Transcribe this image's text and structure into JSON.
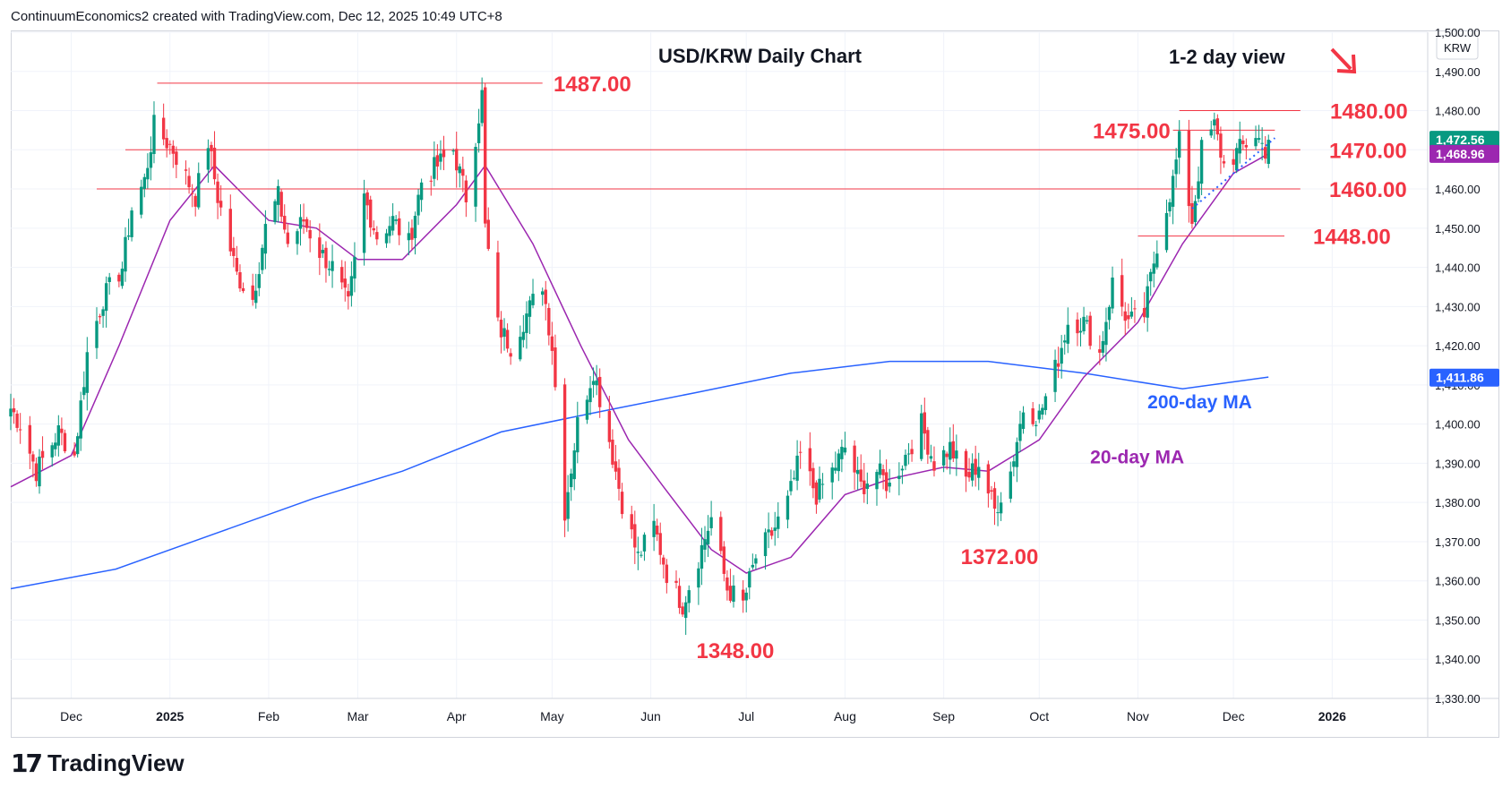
{
  "header": {
    "attribution": "ContinuumEconomics2 created with TradingView.com, Dec 12, 2025 10:49 UTC+8"
  },
  "branding": {
    "logo_text": "TradingView",
    "logo_mark": "17"
  },
  "chart_data": {
    "type": "candlestick",
    "title": "USD/KRW Daily Chart",
    "subtitle": "1-2 day view",
    "view_direction": "down",
    "symbol": "KRW",
    "y_axis": {
      "min": 1330,
      "max": 1500,
      "ticks": [
        1330,
        1340,
        1350,
        1360,
        1370,
        1380,
        1390,
        1400,
        1410,
        1420,
        1430,
        1440,
        1450,
        1460,
        1470,
        1480,
        1490,
        1500
      ],
      "tick_labels": [
        "1,330.00",
        "1,340.00",
        "1,350.00",
        "1,360.00",
        "1,370.00",
        "1,380.00",
        "1,390.00",
        "1,400.00",
        "1,410.00",
        "1,420.00",
        "1,430.00",
        "1,440.00",
        "1,450.00",
        "1,460.00",
        "1,470.00",
        "1,480.00",
        "1,490.00",
        "1,500.00"
      ]
    },
    "x_axis": {
      "labels": [
        "Dec",
        "2025",
        "Feb",
        "Mar",
        "Apr",
        "May",
        "Jun",
        "Jul",
        "Aug",
        "Sep",
        "Oct",
        "Nov",
        "Dec",
        "2026"
      ],
      "label_dates": [
        "2024-12-01",
        "2025-01-01",
        "2025-02-01",
        "2025-03-01",
        "2025-04-01",
        "2025-05-01",
        "2025-06-01",
        "2025-07-01",
        "2025-08-01",
        "2025-09-01",
        "2025-10-01",
        "2025-11-01",
        "2025-12-01",
        "2026-01-01"
      ],
      "range": [
        "2024-11-12",
        "2026-01-31"
      ]
    },
    "last_price": {
      "value": 1472.56,
      "label": "1,472.56",
      "color": "#089981"
    },
    "ma20_price": {
      "value": 1468.96,
      "label": "1,468.96",
      "color": "#9c27b0"
    },
    "ma200_price": {
      "value": 1411.86,
      "label": "1,411.86",
      "color": "#2962ff"
    },
    "levels": [
      {
        "value": 1487.0,
        "label": "1487.00",
        "from": "2024-12-28",
        "to": "2025-04-28"
      },
      {
        "value": 1480.0,
        "label": "1480.00",
        "from": "2025-11-14",
        "to": "2025-12-22"
      },
      {
        "value": 1475.0,
        "label": "1475.00",
        "from": "2025-11-12",
        "to": "2025-12-14"
      },
      {
        "value": 1470.0,
        "label": "1470.00",
        "from": "2024-12-18",
        "to": "2025-12-22"
      },
      {
        "value": 1460.0,
        "label": "1460.00",
        "from": "2024-12-09",
        "to": "2025-12-22"
      },
      {
        "value": 1448.0,
        "label": "1448.00",
        "from": "2025-11-01",
        "to": "2025-12-17"
      }
    ],
    "annotations": [
      {
        "text": "1348.00",
        "date": "2025-06-28",
        "value": 1348
      },
      {
        "text": "1372.00",
        "date": "2025-09-19",
        "value": 1372
      },
      {
        "text": "200-day MA",
        "date": "2025-11-04",
        "value": 1404
      },
      {
        "text": "20-day MA",
        "date": "2025-10-17",
        "value": 1390
      }
    ],
    "trendline": {
      "from": {
        "date": "2025-11-18",
        "value": 1455
      },
      "to": {
        "date": "2025-12-14",
        "value": 1473
      }
    },
    "colors": {
      "up": "#089981",
      "down": "#f23645",
      "ma20": "#9c27b0",
      "ma200": "#2962ff",
      "level": "#f23645",
      "annotation": "#f23645"
    },
    "candle_anchors": [
      {
        "date": "2024-11-12",
        "close": 1404
      },
      {
        "date": "2024-11-15",
        "close": 1400
      },
      {
        "date": "2024-11-20",
        "close": 1388
      },
      {
        "date": "2024-11-27",
        "close": 1398
      },
      {
        "date": "2024-12-02",
        "close": 1392
      },
      {
        "date": "2024-12-06",
        "close": 1418
      },
      {
        "date": "2024-12-11",
        "close": 1432
      },
      {
        "date": "2024-12-17",
        "close": 1440
      },
      {
        "date": "2024-12-20",
        "close": 1455
      },
      {
        "date": "2024-12-24",
        "close": 1462
      },
      {
        "date": "2024-12-27",
        "close": 1476
      },
      {
        "date": "2025-01-02",
        "close": 1470
      },
      {
        "date": "2025-01-06",
        "close": 1463
      },
      {
        "date": "2025-01-09",
        "close": 1458
      },
      {
        "date": "2025-01-13",
        "close": 1472
      },
      {
        "date": "2025-01-16",
        "close": 1458
      },
      {
        "date": "2025-01-22",
        "close": 1438
      },
      {
        "date": "2025-01-27",
        "close": 1432
      },
      {
        "date": "2025-01-31",
        "close": 1450
      },
      {
        "date": "2025-02-04",
        "close": 1458
      },
      {
        "date": "2025-02-07",
        "close": 1446
      },
      {
        "date": "2025-02-12",
        "close": 1452
      },
      {
        "date": "2025-02-17",
        "close": 1444
      },
      {
        "date": "2025-02-21",
        "close": 1440
      },
      {
        "date": "2025-02-26",
        "close": 1430
      },
      {
        "date": "2025-03-03",
        "close": 1458
      },
      {
        "date": "2025-03-07",
        "close": 1448
      },
      {
        "date": "2025-03-12",
        "close": 1452
      },
      {
        "date": "2025-03-17",
        "close": 1446
      },
      {
        "date": "2025-03-21",
        "close": 1462
      },
      {
        "date": "2025-03-26",
        "close": 1466
      },
      {
        "date": "2025-03-31",
        "close": 1470
      },
      {
        "date": "2025-04-04",
        "close": 1458
      },
      {
        "date": "2025-04-09",
        "close": 1484
      },
      {
        "date": "2025-04-10",
        "close": 1450
      },
      {
        "date": "2025-04-14",
        "close": 1425
      },
      {
        "date": "2025-04-18",
        "close": 1420
      },
      {
        "date": "2025-04-23",
        "close": 1428
      },
      {
        "date": "2025-04-28",
        "close": 1436
      },
      {
        "date": "2025-05-01",
        "close": 1420
      },
      {
        "date": "2025-05-05",
        "close": 1378
      },
      {
        "date": "2025-05-09",
        "close": 1400
      },
      {
        "date": "2025-05-14",
        "close": 1414
      },
      {
        "date": "2025-05-19",
        "close": 1396
      },
      {
        "date": "2025-05-23",
        "close": 1380
      },
      {
        "date": "2025-05-28",
        "close": 1366
      },
      {
        "date": "2025-06-02",
        "close": 1374
      },
      {
        "date": "2025-06-06",
        "close": 1362
      },
      {
        "date": "2025-06-11",
        "close": 1354
      },
      {
        "date": "2025-06-16",
        "close": 1366
      },
      {
        "date": "2025-06-20",
        "close": 1376
      },
      {
        "date": "2025-06-25",
        "close": 1358
      },
      {
        "date": "2025-06-30",
        "close": 1354
      },
      {
        "date": "2025-07-04",
        "close": 1366
      },
      {
        "date": "2025-07-09",
        "close": 1372
      },
      {
        "date": "2025-07-14",
        "close": 1380
      },
      {
        "date": "2025-07-18",
        "close": 1392
      },
      {
        "date": "2025-07-23",
        "close": 1382
      },
      {
        "date": "2025-07-28",
        "close": 1388
      },
      {
        "date": "2025-08-01",
        "close": 1394
      },
      {
        "date": "2025-08-06",
        "close": 1384
      },
      {
        "date": "2025-08-11",
        "close": 1388
      },
      {
        "date": "2025-08-15",
        "close": 1384
      },
      {
        "date": "2025-08-20",
        "close": 1392
      },
      {
        "date": "2025-08-25",
        "close": 1400
      },
      {
        "date": "2025-08-29",
        "close": 1390
      },
      {
        "date": "2025-09-03",
        "close": 1394
      },
      {
        "date": "2025-09-08",
        "close": 1386
      },
      {
        "date": "2025-09-12",
        "close": 1390
      },
      {
        "date": "2025-09-17",
        "close": 1378
      },
      {
        "date": "2025-09-22",
        "close": 1388
      },
      {
        "date": "2025-09-26",
        "close": 1404
      },
      {
        "date": "2025-10-01",
        "close": 1402
      },
      {
        "date": "2025-10-06",
        "close": 1414
      },
      {
        "date": "2025-10-10",
        "close": 1426
      },
      {
        "date": "2025-10-15",
        "close": 1426
      },
      {
        "date": "2025-10-20",
        "close": 1418
      },
      {
        "date": "2025-10-24",
        "close": 1436
      },
      {
        "date": "2025-10-29",
        "close": 1426
      },
      {
        "date": "2025-11-03",
        "close": 1428
      },
      {
        "date": "2025-11-07",
        "close": 1446
      },
      {
        "date": "2025-11-12",
        "close": 1462
      },
      {
        "date": "2025-11-14",
        "close": 1472
      },
      {
        "date": "2025-11-18",
        "close": 1452
      },
      {
        "date": "2025-11-21",
        "close": 1470
      },
      {
        "date": "2025-11-25",
        "close": 1476
      },
      {
        "date": "2025-11-28",
        "close": 1466
      },
      {
        "date": "2025-12-03",
        "close": 1470
      },
      {
        "date": "2025-12-08",
        "close": 1474
      },
      {
        "date": "2025-12-11",
        "close": 1470
      },
      {
        "date": "2025-12-12",
        "close": 1472.56
      }
    ],
    "ma20_path": [
      {
        "date": "2024-11-12",
        "value": 1384
      },
      {
        "date": "2024-12-01",
        "value": 1392
      },
      {
        "date": "2024-12-16",
        "value": 1420
      },
      {
        "date": "2025-01-01",
        "value": 1452
      },
      {
        "date": "2025-01-15",
        "value": 1466
      },
      {
        "date": "2025-02-01",
        "value": 1452
      },
      {
        "date": "2025-02-16",
        "value": 1450
      },
      {
        "date": "2025-03-01",
        "value": 1442
      },
      {
        "date": "2025-03-15",
        "value": 1442
      },
      {
        "date": "2025-04-01",
        "value": 1456
      },
      {
        "date": "2025-04-10",
        "value": 1466
      },
      {
        "date": "2025-04-25",
        "value": 1446
      },
      {
        "date": "2025-05-10",
        "value": 1420
      },
      {
        "date": "2025-05-25",
        "value": 1396
      },
      {
        "date": "2025-06-05",
        "value": 1384
      },
      {
        "date": "2025-06-20",
        "value": 1368
      },
      {
        "date": "2025-07-01",
        "value": 1362
      },
      {
        "date": "2025-07-15",
        "value": 1366
      },
      {
        "date": "2025-08-01",
        "value": 1382
      },
      {
        "date": "2025-08-15",
        "value": 1386
      },
      {
        "date": "2025-09-01",
        "value": 1389
      },
      {
        "date": "2025-09-15",
        "value": 1388
      },
      {
        "date": "2025-10-01",
        "value": 1396
      },
      {
        "date": "2025-10-15",
        "value": 1412
      },
      {
        "date": "2025-11-01",
        "value": 1426
      },
      {
        "date": "2025-11-15",
        "value": 1446
      },
      {
        "date": "2025-12-01",
        "value": 1464
      },
      {
        "date": "2025-12-12",
        "value": 1469
      }
    ],
    "ma200_path": [
      {
        "date": "2024-11-12",
        "value": 1358
      },
      {
        "date": "2024-12-15",
        "value": 1363
      },
      {
        "date": "2025-01-15",
        "value": 1372
      },
      {
        "date": "2025-02-15",
        "value": 1381
      },
      {
        "date": "2025-03-15",
        "value": 1388
      },
      {
        "date": "2025-04-15",
        "value": 1398
      },
      {
        "date": "2025-05-15",
        "value": 1403
      },
      {
        "date": "2025-06-15",
        "value": 1408
      },
      {
        "date": "2025-07-15",
        "value": 1413
      },
      {
        "date": "2025-08-15",
        "value": 1416
      },
      {
        "date": "2025-09-15",
        "value": 1416
      },
      {
        "date": "2025-10-15",
        "value": 1413
      },
      {
        "date": "2025-11-15",
        "value": 1409
      },
      {
        "date": "2025-12-12",
        "value": 1412
      }
    ]
  }
}
